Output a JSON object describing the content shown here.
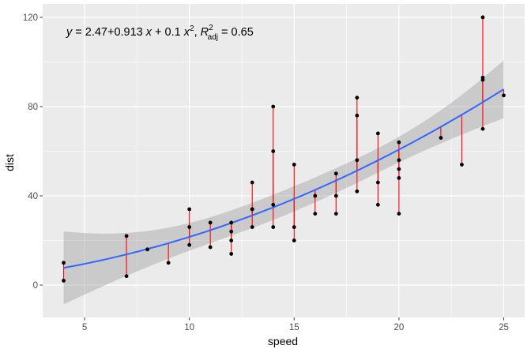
{
  "chart_data": {
    "type": "scatter",
    "xlabel": "speed",
    "ylabel": "dist",
    "xlim": [
      3,
      26
    ],
    "ylim": [
      -14.5,
      126
    ],
    "x_ticks": [
      5,
      10,
      15,
      20,
      25
    ],
    "y_ticks": [
      0,
      40,
      80,
      120
    ],
    "grid": true,
    "annotation": {
      "y_var": "y",
      "eq_main": " = 2.47+0.913 ",
      "x_var": "x",
      "eq_plus": " + 0.1 ",
      "x_var2": "x",
      "x_power": "2",
      "sep": ", ",
      "r_var": "R",
      "r_power": "2",
      "r_sub": "adj",
      "r_value": " = 0.65"
    },
    "fit": {
      "intercept": 2.47,
      "linear": 0.913,
      "quadratic": 0.1,
      "color": "#3366ff",
      "band_color": "#999999"
    },
    "colors": {
      "panel": "#ebebeb",
      "grid": "#ffffff",
      "point": "#000000",
      "residual": "#ff0000"
    },
    "points": [
      [
        4,
        2
      ],
      [
        4,
        10
      ],
      [
        7,
        4
      ],
      [
        7,
        22
      ],
      [
        8,
        16
      ],
      [
        9,
        10
      ],
      [
        10,
        18
      ],
      [
        10,
        26
      ],
      [
        10,
        34
      ],
      [
        11,
        17
      ],
      [
        11,
        28
      ],
      [
        12,
        14
      ],
      [
        12,
        20
      ],
      [
        12,
        24
      ],
      [
        12,
        28
      ],
      [
        13,
        26
      ],
      [
        13,
        34
      ],
      [
        13,
        34
      ],
      [
        13,
        46
      ],
      [
        14,
        26
      ],
      [
        14,
        36
      ],
      [
        14,
        60
      ],
      [
        14,
        80
      ],
      [
        15,
        20
      ],
      [
        15,
        26
      ],
      [
        15,
        54
      ],
      [
        16,
        32
      ],
      [
        16,
        40
      ],
      [
        17,
        32
      ],
      [
        17,
        40
      ],
      [
        17,
        50
      ],
      [
        18,
        42
      ],
      [
        18,
        56
      ],
      [
        18,
        76
      ],
      [
        18,
        84
      ],
      [
        19,
        36
      ],
      [
        19,
        46
      ],
      [
        19,
        68
      ],
      [
        20,
        32
      ],
      [
        20,
        48
      ],
      [
        20,
        52
      ],
      [
        20,
        56
      ],
      [
        20,
        64
      ],
      [
        22,
        66
      ],
      [
        23,
        54
      ],
      [
        24,
        70
      ],
      [
        24,
        92
      ],
      [
        24,
        93
      ],
      [
        24,
        120
      ],
      [
        25,
        85
      ]
    ]
  }
}
